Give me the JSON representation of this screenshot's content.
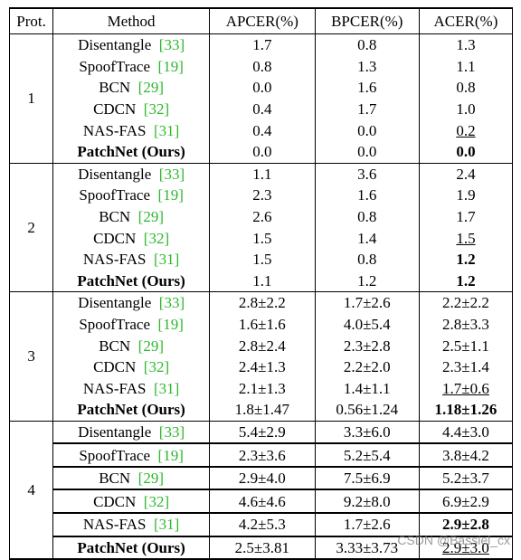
{
  "table": {
    "headers": [
      "Prot.",
      "Method",
      "APCER(%)",
      "BPCER(%)",
      "ACER(%)"
    ],
    "groups": [
      {
        "prot": "1",
        "rows": [
          {
            "method": "Disentangle",
            "ref": "[33]",
            "apcer": "1.7",
            "bpcer": "0.8",
            "acer": "1.3"
          },
          {
            "method": "SpoofTrace",
            "ref": "[19]",
            "apcer": "0.8",
            "bpcer": "1.3",
            "acer": "1.1"
          },
          {
            "method": "BCN",
            "ref": "[29]",
            "apcer": "0.0",
            "bpcer": "1.6",
            "acer": "0.8"
          },
          {
            "method": "CDCN",
            "ref": "[32]",
            "apcer": "0.4",
            "bpcer": "1.7",
            "acer": "1.0"
          },
          {
            "method": "NAS-FAS",
            "ref": "[31]",
            "apcer": "0.4",
            "bpcer": "0.0",
            "acer": "0.2"
          },
          {
            "method": "PatchNet (Ours)",
            "apcer": "0.0",
            "bpcer": "0.0",
            "acer": "0.0"
          }
        ]
      },
      {
        "prot": "2",
        "rows": [
          {
            "method": "Disentangle",
            "ref": "[33]",
            "apcer": "1.1",
            "bpcer": "3.6",
            "acer": "2.4"
          },
          {
            "method": "SpoofTrace",
            "ref": "[19]",
            "apcer": "2.3",
            "bpcer": "1.6",
            "acer": "1.9"
          },
          {
            "method": "BCN",
            "ref": "[29]",
            "apcer": "2.6",
            "bpcer": "0.8",
            "acer": "1.7"
          },
          {
            "method": "CDCN",
            "ref": "[32]",
            "apcer": "1.5",
            "bpcer": "1.4",
            "acer": "1.5"
          },
          {
            "method": "NAS-FAS",
            "ref": "[31]",
            "apcer": "1.5",
            "bpcer": "0.8",
            "acer": "1.2"
          },
          {
            "method": "PatchNet (Ours)",
            "apcer": "1.1",
            "bpcer": "1.2",
            "acer": "1.2"
          }
        ]
      },
      {
        "prot": "3",
        "rows": [
          {
            "method": "Disentangle",
            "ref": "[33]",
            "apcer": "2.8±2.2",
            "bpcer": "1.7±2.6",
            "acer": "2.2±2.2"
          },
          {
            "method": "SpoofTrace",
            "ref": "[19]",
            "apcer": "1.6±1.6",
            "bpcer": "4.0±5.4",
            "acer": "2.8±3.3"
          },
          {
            "method": "BCN",
            "ref": "[29]",
            "apcer": "2.8±2.4",
            "bpcer": "2.3±2.8",
            "acer": "2.5±1.1"
          },
          {
            "method": "CDCN",
            "ref": "[32]",
            "apcer": "2.4±1.3",
            "bpcer": "2.2±2.0",
            "acer": "2.3±1.4"
          },
          {
            "method": "NAS-FAS",
            "ref": "[31]",
            "apcer": "2.1±1.3",
            "bpcer": "1.4±1.1",
            "acer": "1.7±0.6"
          },
          {
            "method": "PatchNet (Ours)",
            "apcer": "1.8±1.47",
            "bpcer": "0.56±1.24",
            "acer": "1.18±1.26"
          }
        ]
      },
      {
        "prot": "4",
        "rows": [
          {
            "method": "Disentangle",
            "ref": "[33]",
            "apcer": "5.4±2.9",
            "bpcer": "3.3±6.0",
            "acer": "4.4±3.0"
          },
          {
            "method": "SpoofTrace",
            "ref": "[19]",
            "apcer": "2.3±3.6",
            "bpcer": "5.2±5.4",
            "acer": "3.8±4.2"
          },
          {
            "method": "BCN",
            "ref": "[29]",
            "apcer": "2.9±4.0",
            "bpcer": "7.5±6.9",
            "acer": "5.2±3.7"
          },
          {
            "method": "CDCN",
            "ref": "[32]",
            "apcer": "4.6±4.6",
            "bpcer": "9.2±8.0",
            "acer": "6.9±2.9"
          },
          {
            "method": "NAS-FAS",
            "ref": "[31]",
            "apcer": "4.2±5.3",
            "bpcer": "1.7±2.6",
            "acer": "2.9±2.8"
          },
          {
            "method": "PatchNet (Ours)",
            "apcer": "2.5±3.81",
            "bpcer": "3.33±3.73",
            "acer": "2.9±3.0"
          }
        ]
      }
    ]
  },
  "watermark": "CSDN @Bassiel_cx"
}
